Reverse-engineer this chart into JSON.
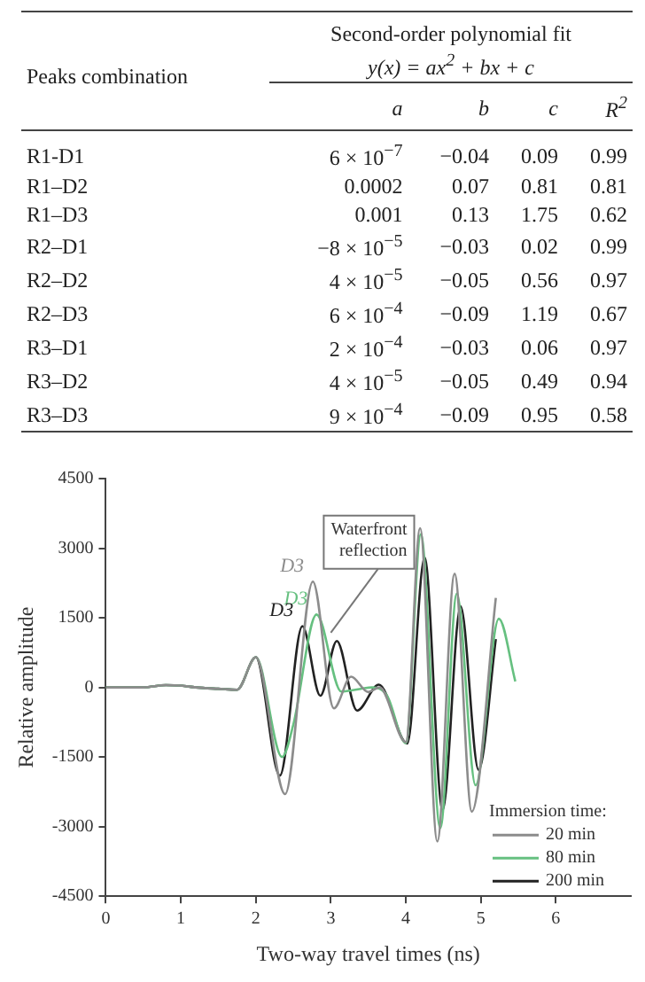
{
  "chart_data": [
    {
      "type": "other",
      "title": "Second-order polynomial fit",
      "subtitle": "y(x) = ax$^{2}$ + bx + c",
      "ylabel": "Peaks combination",
      "categories": [
        "a",
        "b",
        "c",
        "R$^{2}$"
      ],
      "y_categories": [
        "R1-D1",
        "R1–D2",
        "R1–D3",
        "R2–D1",
        "R2–D2",
        "R2–D3",
        "R3–D1",
        "R3–D2",
        "R3–D3"
      ],
      "cell_labels": [
        [
          "6 × 10$^{−7}$",
          "−0.04",
          "0.09",
          "0.99"
        ],
        [
          "0.0002",
          "0.07",
          "0.81",
          "0.81"
        ],
        [
          "0.001",
          "0.13",
          "1.75",
          "0.62"
        ],
        [
          "−8 × 10$^{−5}$",
          "−0.03",
          "0.02",
          "0.99"
        ],
        [
          "4 × 10$^{−5}$",
          "−0.05",
          "0.56",
          "0.97"
        ],
        [
          "6 × 10$^{−4}$",
          "−0.09",
          "1.19",
          "0.67"
        ],
        [
          "2 × 10$^{−4}$",
          "−0.03",
          "0.06",
          "0.97"
        ],
        [
          "4 × 10$^{−5}$",
          "−0.05",
          "0.49",
          "0.94"
        ],
        [
          "9 × 10$^{−4}$",
          "−0.09",
          "0.95",
          "0.58"
        ]
      ]
    },
    {
      "type": "line",
      "xlabel": "Two-way travel times (ns)",
      "ylabel": "Relative amplitude",
      "legend_title": "Immersion time:",
      "xlim": [
        0,
        7
      ],
      "xticks": [
        0,
        1,
        2,
        3,
        4,
        5,
        6
      ],
      "ylim": [
        -4500,
        4500
      ],
      "yticks": [
        -4500,
        -3000,
        -1500,
        0,
        1500,
        3000,
        4500
      ],
      "grid": false,
      "legend": "bottom right",
      "marker": "none",
      "line_style": "solid",
      "annotations": [
        {
          "text": "D3",
          "x": 2.76,
          "y": 2280
        },
        {
          "text": "D3",
          "x": 2.81,
          "y": 1570
        },
        {
          "text": "D3",
          "x": 2.62,
          "y": 1320
        },
        {
          "text": "Waterfront reflection",
          "x": 3.0,
          "y": 950
        }
      ],
      "series": [
        {
          "name": "20 min",
          "color": "#8c8c8c",
          "x": [
            0,
            0.5,
            0.8,
            1.0,
            1.2,
            1.5,
            1.75,
            2.0,
            2.39,
            2.76,
            3.04,
            3.27,
            3.5,
            3.65,
            4.0,
            4.19,
            4.42,
            4.65,
            4.88,
            5.2
          ],
          "values": [
            0,
            0,
            50,
            40,
            0,
            -30,
            -50,
            650,
            -2300,
            2280,
            -450,
            230,
            -100,
            0,
            -1180,
            3430,
            -3320,
            2450,
            -2680,
            1930
          ]
        },
        {
          "name": "80 min",
          "color": "#66c080",
          "x": [
            0,
            0.5,
            0.8,
            1.0,
            1.2,
            1.5,
            1.75,
            2.0,
            2.35,
            2.5,
            2.81,
            3.14,
            3.4,
            3.55,
            3.75,
            4.0,
            4.2,
            4.46,
            4.68,
            4.93,
            5.24,
            5.46
          ],
          "values": [
            0,
            0,
            50,
            40,
            0,
            -30,
            -50,
            650,
            -1500,
            -800,
            1570,
            -90,
            -30,
            0,
            -180,
            -1200,
            3300,
            -3030,
            2020,
            -2110,
            1480,
            130
          ]
        },
        {
          "name": "200 min",
          "color": "#222222",
          "x": [
            0,
            0.5,
            0.8,
            1.0,
            1.2,
            1.5,
            1.75,
            2.0,
            2.32,
            2.62,
            2.86,
            3.08,
            3.35,
            3.64,
            4.02,
            4.25,
            4.49,
            4.73,
            4.97,
            5.2
          ],
          "values": [
            0,
            0,
            50,
            40,
            0,
            -30,
            -50,
            650,
            -1900,
            1320,
            -180,
            1000,
            -500,
            60,
            -1210,
            2800,
            -2650,
            1750,
            -1780,
            1040
          ]
        }
      ]
    }
  ]
}
